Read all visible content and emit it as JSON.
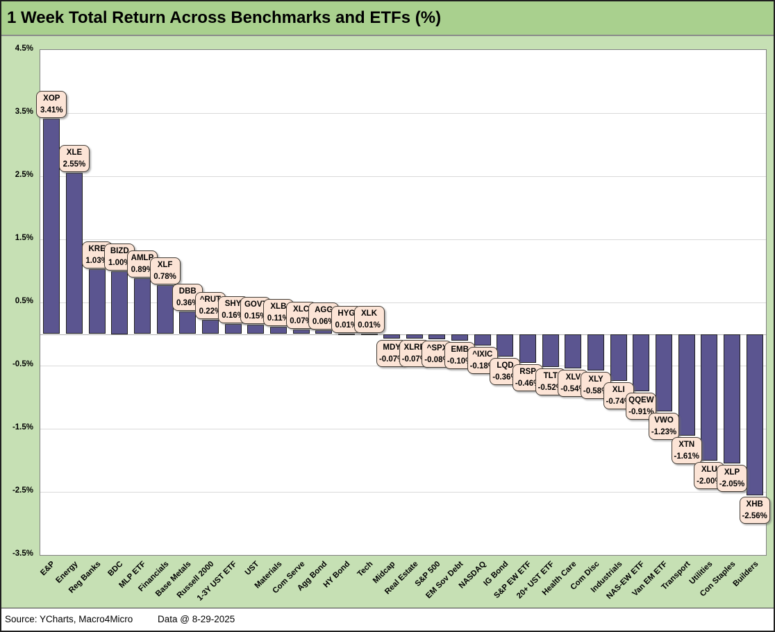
{
  "title": "1 Week Total Return Across Benchmarks and ETFs (%)",
  "footer": {
    "source": "Source: YCharts, Macro4Micro",
    "data_date": "Data @ 8-29-2025"
  },
  "colors": {
    "title_bg": "#a9d08e",
    "chart_bg": "#c6e0b4",
    "plot_bg": "#ffffff",
    "bar_fill": "#5b5590",
    "bar_border": "#1f1f1f",
    "callout_bg": "#fce4d6",
    "callout_border": "#403a33",
    "gridline": "#d9d9d9",
    "zero_line": "#b0b0b0",
    "plot_border": "#7f7f7f"
  },
  "chart_data": {
    "type": "bar",
    "title": "1 Week Total Return Across Benchmarks and ETFs (%)",
    "xlabel": "",
    "ylabel": "",
    "ylim": [
      -3.5,
      4.5
    ],
    "grid": true,
    "legend": "none",
    "ytick_labels": [
      "4.5%",
      "3.5%",
      "2.5%",
      "1.5%",
      "0.5%",
      "-0.5%",
      "-1.5%",
      "-2.5%",
      "-3.5%"
    ],
    "ytick_values": [
      4.5,
      3.5,
      2.5,
      1.5,
      0.5,
      -0.5,
      -1.5,
      -2.5,
      -3.5
    ],
    "categories": [
      "E&P",
      "Energy",
      "Reg Banks",
      "BDC",
      "MLP ETF",
      "Financials",
      "Base Metals",
      "Russell 2000",
      "1-3Y UST ETF",
      "UST",
      "Materials",
      "Com Serve",
      "Agg Bond",
      "HY Bond",
      "Tech",
      "Midcap",
      "Real Estate",
      "S&P 500",
      "EM Sov Debt",
      "NASDAQ",
      "IG Bond",
      "S&P EW ETF",
      "20+ UST ETF",
      "Health Care",
      "Com Disc",
      "Industrials",
      "NAS-EW ETF",
      "Van EM ETF",
      "Transport",
      "Utilities",
      "Con Staples",
      "Builders"
    ],
    "tickers": [
      "XOP",
      "XLE",
      "KRE",
      "BIZD",
      "AMLP",
      "XLF",
      "DBB",
      "^RUT",
      "SHY",
      "GOVT",
      "XLB",
      "XLC",
      "AGG",
      "HYG",
      "XLK",
      "MDY",
      "XLRE",
      "^SPX",
      "EMB",
      "^IXIC",
      "LQD",
      "RSP",
      "TLT",
      "XLV",
      "XLY",
      "XLI",
      "QQEW",
      "VWO",
      "XTN",
      "XLU",
      "XLP",
      "XHB"
    ],
    "values": [
      3.41,
      2.55,
      1.03,
      1.0,
      0.89,
      0.78,
      0.36,
      0.22,
      0.16,
      0.15,
      0.11,
      0.07,
      0.06,
      0.01,
      0.01,
      -0.07,
      -0.07,
      -0.08,
      -0.1,
      -0.18,
      -0.36,
      -0.46,
      -0.52,
      -0.54,
      -0.58,
      -0.74,
      -0.91,
      -1.23,
      -1.61,
      -2.0,
      -2.05,
      -2.56
    ],
    "value_labels": [
      "3.41%",
      "2.55%",
      "1.03%",
      "1.00%",
      "0.89%",
      "0.78%",
      "0.36%",
      "0.22%",
      "0.16%",
      "0.15%",
      "0.11%",
      "0.07%",
      "0.06%",
      "0.01%",
      "0.01%",
      "-0.07%",
      "-0.07%",
      "-0.08%",
      "-0.10%",
      "-0.18%",
      "-0.36%",
      "-0.46%",
      "-0.52%",
      "-0.54%",
      "-0.58%",
      "-0.74%",
      "-0.91%",
      "-1.23%",
      "-1.61%",
      "-2.00%",
      "-2.05%",
      "-2.56%"
    ]
  }
}
